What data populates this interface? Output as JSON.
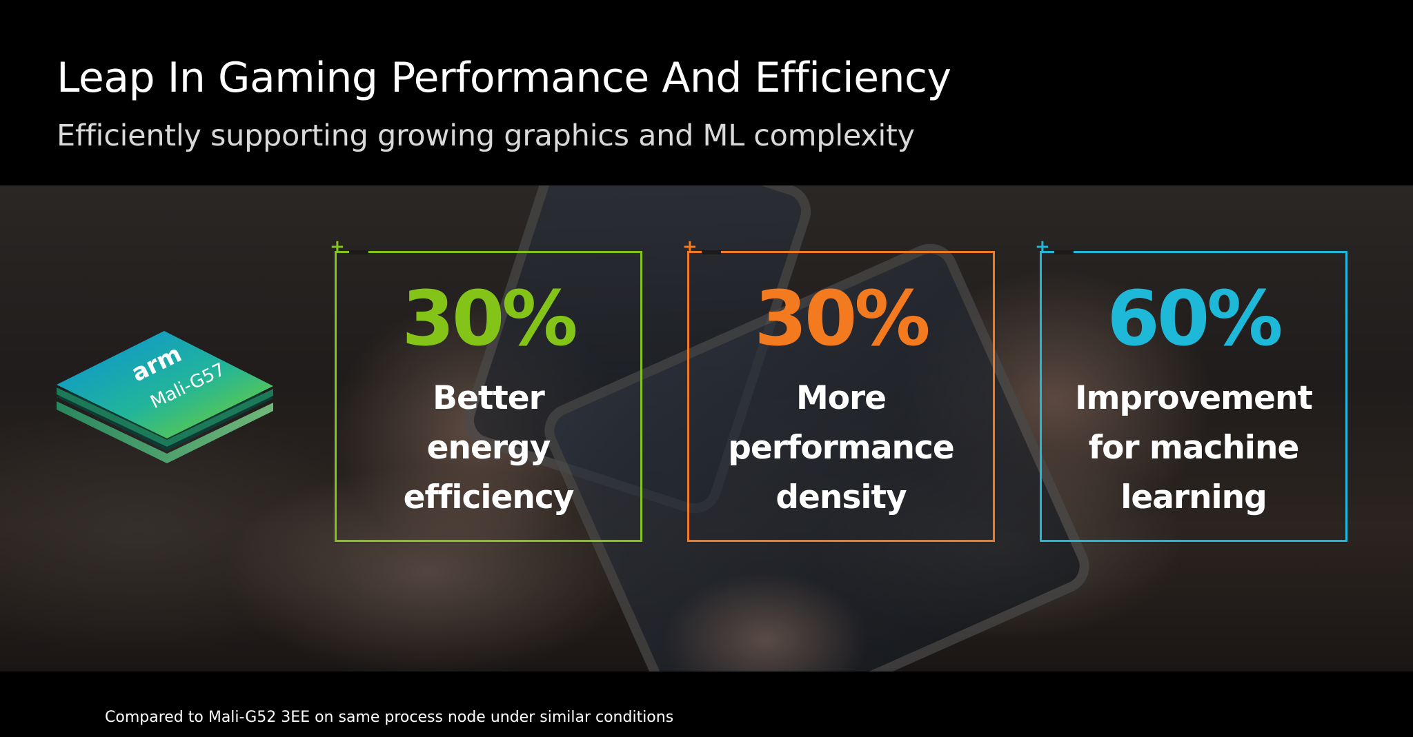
{
  "header": {
    "title": "Leap In Gaming Performance And Efficiency",
    "subtitle": "Efficiently supporting growing graphics and ML complexity"
  },
  "chip": {
    "brand": "arm",
    "model": "Mali-G57",
    "icon": "arm-mali-chip-icon"
  },
  "cards": [
    {
      "value": "30%",
      "lines": [
        "Better",
        "energy",
        "efficiency"
      ],
      "color": "#84c418"
    },
    {
      "value": "30%",
      "lines": [
        "More",
        "performance",
        "density"
      ],
      "color": "#f47a20"
    },
    {
      "value": "60%",
      "lines": [
        "Improvement",
        "for machine",
        "learning"
      ],
      "color": "#1eb8d8"
    }
  ],
  "footnote": "Compared to Mali-G52 3EE on same process node under similar conditions"
}
